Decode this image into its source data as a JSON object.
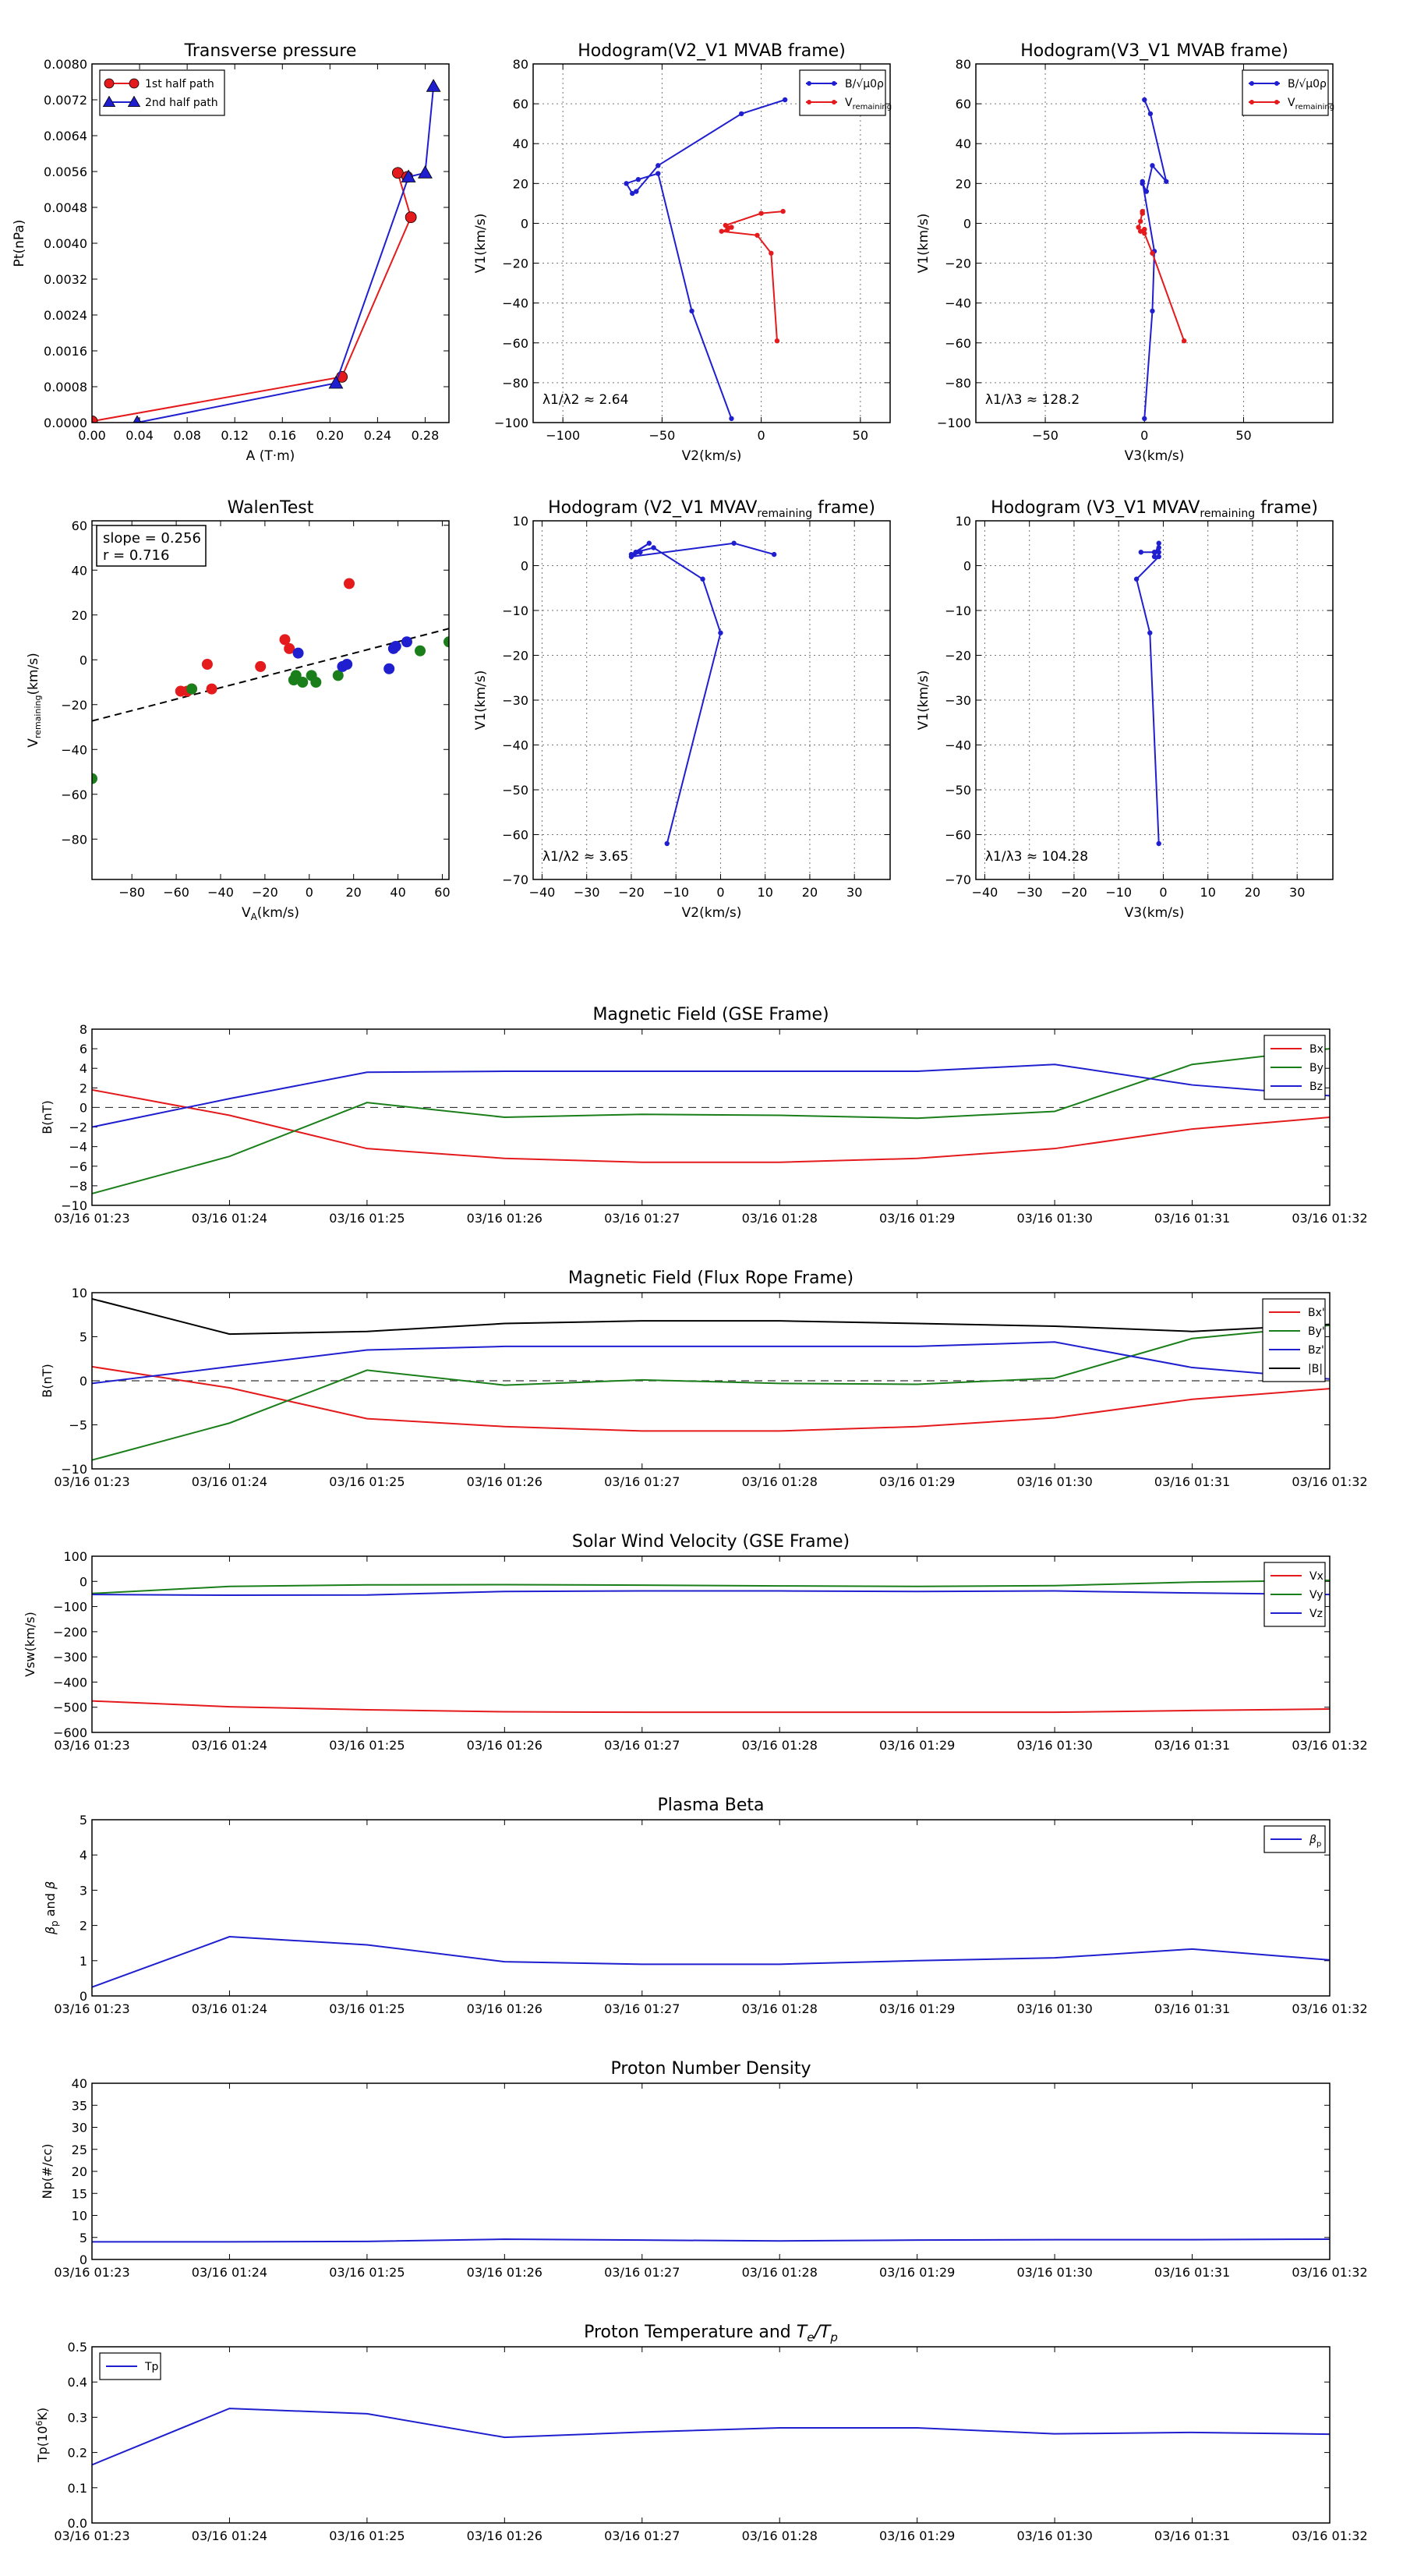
{
  "time_ticks": [
    "03/16 01:23",
    "03/16 01:24",
    "03/16 01:25",
    "03/16 01:26",
    "03/16 01:27",
    "03/16 01:28",
    "03/16 01:29",
    "03/16 01:30",
    "03/16 01:31",
    "03/16 01:32"
  ],
  "colors": {
    "red": "#e41a1c",
    "green": "#1a7f1a",
    "blue": "#1f1fd0",
    "black": "#000000"
  },
  "chart_data": [
    {
      "id": "transverse-pressure",
      "type": "line",
      "title": "Transverse pressure",
      "xlabel": "A (T·m)",
      "ylabel": "Pt(nPa)",
      "xlim": [
        0,
        0.3
      ],
      "ylim": [
        0,
        0.008
      ],
      "xticks": [
        0,
        0.04,
        0.08,
        0.12,
        0.16,
        0.2,
        0.24,
        0.28
      ],
      "xtick_labels": [
        "0.00",
        "0.04",
        "0.08",
        "0.12",
        "0.16",
        "0.20",
        "0.24",
        "0.28"
      ],
      "yticks": [
        0,
        0.0008,
        0.0016,
        0.0024,
        0.0032,
        0.004,
        0.0048,
        0.0056,
        0.0064,
        0.0072,
        0.008
      ],
      "ytick_labels": [
        "0.0000",
        "0.0008",
        "0.0016",
        "0.0024",
        "0.0032",
        "0.0040",
        "0.0048",
        "0.0056",
        "0.0064",
        "0.0072",
        "0.0080"
      ],
      "grid": false,
      "legend": "upper-left",
      "series": [
        {
          "name": "1st half path",
          "color": "red",
          "marker": "circle",
          "x": [
            0.0,
            0.21,
            0.268,
            0.257,
            0.265
          ],
          "y": [
            3e-05,
            0.00102,
            0.00458,
            0.00557,
            0.00548
          ]
        },
        {
          "name": "2nd half path",
          "color": "blue",
          "marker": "triangle",
          "x": [
            0.038,
            0.205,
            0.266,
            0.28,
            0.287
          ],
          "y": [
            0.0,
            0.00088,
            0.00548,
            0.00557,
            0.0075
          ]
        }
      ]
    },
    {
      "id": "hodogram-v2-v1-mvab",
      "type": "line",
      "title": "Hodogram(V2_V1 MVAB frame)",
      "xlabel": "V2(km/s)",
      "ylabel": "V1(km/s)",
      "xlim": [
        -115,
        65
      ],
      "ylim": [
        -100,
        80
      ],
      "xticks": [
        -100,
        -50,
        0,
        50
      ],
      "xtick_labels": [
        "−100",
        "−50",
        "0",
        "50"
      ],
      "yticks": [
        -100,
        -80,
        -60,
        -40,
        -20,
        0,
        20,
        40,
        60,
        80
      ],
      "ytick_labels": [
        "−100",
        "−80",
        "−60",
        "−40",
        "−20",
        "0",
        "20",
        "40",
        "60",
        "80"
      ],
      "grid": true,
      "legend": "upper-right",
      "annotation": "λ1/λ2 ≈ 2.64",
      "series": [
        {
          "name": "B/√μ0ρ",
          "color": "blue",
          "marker": "dot",
          "x": [
            12,
            -10,
            -52,
            -63,
            -65,
            -68,
            -62,
            -52,
            -35,
            -15
          ],
          "y": [
            62,
            55,
            29,
            16,
            15,
            20,
            22,
            25,
            -44,
            -98
          ]
        },
        {
          "name": "Vremaining",
          "color": "red",
          "marker": "dot",
          "x": [
            11,
            0,
            -18,
            -15,
            -17,
            -20,
            -2,
            5,
            8
          ],
          "y": [
            6,
            5,
            -1,
            -2,
            -3,
            -4,
            -6,
            -15,
            -59
          ]
        }
      ]
    },
    {
      "id": "hodogram-v3-v1-mvab",
      "type": "line",
      "title": "Hodogram(V3_V1 MVAB frame)",
      "xlabel": "V3(km/s)",
      "ylabel": "V1(km/s)",
      "xlim": [
        -85,
        95
      ],
      "ylim": [
        -100,
        80
      ],
      "xticks": [
        -50,
        0,
        50
      ],
      "xtick_labels": [
        "−50",
        "0",
        "50"
      ],
      "yticks": [
        -100,
        -80,
        -60,
        -40,
        -20,
        0,
        20,
        40,
        60,
        80
      ],
      "ytick_labels": [
        "−100",
        "−80",
        "−60",
        "−40",
        "−20",
        "0",
        "20",
        "40",
        "60",
        "80"
      ],
      "grid": true,
      "legend": "upper-right",
      "annotation": "λ1/λ3 ≈ 128.2",
      "series": [
        {
          "name": "B/√μ0ρ",
          "color": "blue",
          "marker": "dot",
          "x": [
            0,
            3,
            11,
            4,
            1,
            -1,
            -1,
            5,
            4,
            0
          ],
          "y": [
            62,
            55,
            21,
            29,
            16,
            20,
            21,
            -14,
            -44,
            -98
          ]
        },
        {
          "name": "Vremaining",
          "color": "red",
          "marker": "dot",
          "x": [
            -1,
            -1,
            -2,
            -3,
            -2,
            0,
            0,
            4,
            20
          ],
          "y": [
            5,
            6,
            1,
            -2,
            -4,
            -3,
            -5,
            -15,
            -59
          ]
        }
      ]
    },
    {
      "id": "walen-test",
      "type": "scatter",
      "title": "WalenTest",
      "xlabel": "V_A(km/s)",
      "ylabel": "V_remaining(km/s)",
      "xlim": [
        -98,
        63
      ],
      "ylim": [
        -98,
        62
      ],
      "xticks": [
        -80,
        -60,
        -40,
        -20,
        0,
        20,
        40,
        60
      ],
      "xtick_labels": [
        "−80",
        "−60",
        "−40",
        "−20",
        "0",
        "20",
        "40",
        "60"
      ],
      "yticks": [
        -80,
        -60,
        -40,
        -20,
        0,
        20,
        40,
        60
      ],
      "ytick_labels": [
        "−80",
        "−60",
        "−40",
        "−20",
        "0",
        "20",
        "40",
        "60"
      ],
      "grid": false,
      "annotation_lines": [
        "slope = 0.256",
        "r = 0.716"
      ],
      "fit": {
        "slope": 0.256,
        "intercept": -2.2
      },
      "series": [
        {
          "color": "red",
          "x": [
            -58,
            -55,
            -53,
            -46,
            -44,
            -22,
            -11,
            -9,
            18
          ],
          "y": [
            -14,
            -14,
            -13,
            -2,
            -13,
            -3,
            9,
            5,
            34
          ]
        },
        {
          "color": "green",
          "x": [
            -98,
            -53,
            -7,
            -6,
            -3,
            1,
            3,
            13,
            50,
            63
          ],
          "y": [
            -53,
            -13,
            -9,
            -7,
            -10,
            -7,
            -10,
            -7,
            4,
            8
          ]
        },
        {
          "color": "blue",
          "x": [
            -5,
            15,
            17,
            36,
            38,
            39,
            44
          ],
          "y": [
            3,
            -3,
            -2,
            -4,
            5,
            6,
            8
          ]
        }
      ]
    },
    {
      "id": "hodogram-v2-v1-mvav",
      "type": "line",
      "title": "Hodogram (V2_V1 MVAV_remaining frame)",
      "xlabel": "V2(km/s)",
      "ylabel": "V1(km/s)",
      "xlim": [
        -42,
        38
      ],
      "ylim": [
        -70,
        10
      ],
      "xticks": [
        -40,
        -30,
        -20,
        -10,
        0,
        10,
        20,
        30
      ],
      "xtick_labels": [
        "−40",
        "−30",
        "−20",
        "−10",
        "0",
        "10",
        "20",
        "30"
      ],
      "yticks": [
        -70,
        -60,
        -50,
        -40,
        -30,
        -20,
        -10,
        0,
        10
      ],
      "ytick_labels": [
        "−70",
        "−60",
        "−50",
        "−40",
        "−30",
        "−20",
        "−10",
        "0",
        "10"
      ],
      "grid": true,
      "annotation": "λ1/λ2 ≈ 3.65",
      "series": [
        {
          "color": "blue",
          "marker": "dot",
          "x": [
            12,
            3,
            -20,
            -18,
            -20,
            -16,
            -19,
            -15,
            -4,
            0,
            -12
          ],
          "y": [
            2.5,
            5,
            2,
            3,
            2.5,
            5,
            3,
            4,
            -3,
            -15,
            -62
          ]
        }
      ]
    },
    {
      "id": "hodogram-v3-v1-mvav",
      "type": "line",
      "title": "Hodogram (V3_V1 MVAV_remaining frame)",
      "xlabel": "V3(km/s)",
      "ylabel": "V1(km/s)",
      "xlim": [
        -42,
        38
      ],
      "ylim": [
        -70,
        10
      ],
      "xticks": [
        -40,
        -30,
        -20,
        -10,
        0,
        10,
        20,
        30
      ],
      "xtick_labels": [
        "−40",
        "−30",
        "−20",
        "−10",
        "0",
        "10",
        "20",
        "30"
      ],
      "yticks": [
        -70,
        -60,
        -50,
        -40,
        -30,
        -20,
        -10,
        0,
        10
      ],
      "ytick_labels": [
        "−70",
        "−60",
        "−50",
        "−40",
        "−30",
        "−20",
        "−10",
        "0",
        "10"
      ],
      "grid": true,
      "annotation": "λ1/λ3 ≈ 104.28",
      "series": [
        {
          "color": "blue",
          "marker": "dot",
          "x": [
            -5,
            -2,
            -1,
            -2,
            -1,
            -1,
            -1,
            -6,
            -3,
            -1
          ],
          "y": [
            3,
            3,
            4,
            2,
            5,
            3,
            2,
            -3,
            -15,
            -62
          ]
        }
      ]
    },
    {
      "id": "magnetic-field-gse",
      "type": "line",
      "title": "Magnetic Field (GSE Frame)",
      "ylabel": "B(nT)",
      "ylim": [
        -10,
        8
      ],
      "yticks": [
        -10,
        -8,
        -6,
        -4,
        -2,
        0,
        2,
        4,
        6,
        8
      ],
      "ytick_labels": [
        "−10",
        "−8",
        "−6",
        "−4",
        "−2",
        "0",
        "2",
        "4",
        "6",
        "8"
      ],
      "zero_line": true,
      "legend": "upper-right",
      "x": [
        0,
        1,
        2,
        3,
        4,
        5,
        6,
        7,
        8,
        9
      ],
      "series": [
        {
          "name": "Bx",
          "color": "red",
          "values": [
            1.8,
            -0.8,
            -4.2,
            -5.2,
            -5.6,
            -5.6,
            -5.2,
            -4.2,
            -2.2,
            -1.0
          ]
        },
        {
          "name": "By",
          "color": "green",
          "values": [
            -8.8,
            -5.0,
            0.5,
            -1.0,
            -0.7,
            -0.8,
            -1.1,
            -0.4,
            4.4,
            6.0
          ]
        },
        {
          "name": "Bz",
          "color": "blue",
          "values": [
            -2.0,
            0.9,
            3.6,
            3.7,
            3.7,
            3.7,
            3.7,
            4.4,
            2.3,
            1.2
          ]
        }
      ]
    },
    {
      "id": "magnetic-field-flux-rope",
      "type": "line",
      "title": "Magnetic Field (Flux Rope Frame)",
      "ylabel": "B(nT)",
      "ylim": [
        -10,
        10
      ],
      "yticks": [
        -10,
        -5,
        0,
        5,
        10
      ],
      "ytick_labels": [
        "−10",
        "−5",
        "0",
        "5",
        "10"
      ],
      "zero_line": true,
      "legend": "upper-right",
      "x": [
        0,
        1,
        2,
        3,
        4,
        5,
        6,
        7,
        8,
        9
      ],
      "series": [
        {
          "name": "Bx'",
          "color": "red",
          "values": [
            1.6,
            -0.8,
            -4.3,
            -5.2,
            -5.7,
            -5.7,
            -5.2,
            -4.2,
            -2.1,
            -0.9
          ]
        },
        {
          "name": "By'",
          "color": "green",
          "values": [
            -9.0,
            -4.8,
            1.2,
            -0.5,
            0.1,
            -0.3,
            -0.4,
            0.3,
            4.8,
            6.3
          ]
        },
        {
          "name": "Bz'",
          "color": "blue",
          "values": [
            -0.3,
            1.6,
            3.5,
            3.9,
            3.9,
            3.9,
            3.9,
            4.4,
            1.5,
            0.2
          ]
        },
        {
          "name": "|B|",
          "color": "black",
          "values": [
            9.3,
            5.3,
            5.6,
            6.5,
            6.8,
            6.8,
            6.5,
            6.2,
            5.6,
            6.4
          ]
        }
      ]
    },
    {
      "id": "solar-wind-velocity",
      "type": "line",
      "title": "Solar Wind Velocity (GSE Frame)",
      "ylabel": "Vsw(km/s)",
      "ylim": [
        -600,
        100
      ],
      "yticks": [
        -600,
        -500,
        -400,
        -300,
        -200,
        -100,
        0,
        100
      ],
      "ytick_labels": [
        "−600",
        "−500",
        "−400",
        "−300",
        "−200",
        "−100",
        "0",
        "100"
      ],
      "legend": "upper-right",
      "x": [
        0,
        1,
        2,
        3,
        4,
        5,
        6,
        7,
        8,
        9
      ],
      "series": [
        {
          "name": "Vx",
          "color": "red",
          "values": [
            -475,
            -498,
            -510,
            -518,
            -520,
            -520,
            -520,
            -520,
            -513,
            -507
          ]
        },
        {
          "name": "Vy",
          "color": "green",
          "values": [
            -48,
            -20,
            -14,
            -13,
            -15,
            -18,
            -20,
            -17,
            -3,
            4
          ]
        },
        {
          "name": "Vz",
          "color": "blue",
          "values": [
            -52,
            -55,
            -54,
            -40,
            -38,
            -38,
            -40,
            -38,
            -46,
            -52
          ]
        }
      ]
    },
    {
      "id": "plasma-beta",
      "type": "line",
      "title": "Plasma Beta",
      "ylabel": "βp and β",
      "ylim": [
        0,
        5
      ],
      "yticks": [
        0,
        1,
        2,
        3,
        4,
        5
      ],
      "ytick_labels": [
        "0",
        "1",
        "2",
        "3",
        "4",
        "5"
      ],
      "legend": "upper-right",
      "x": [
        0,
        1,
        2,
        3,
        4,
        5,
        6,
        7,
        8,
        9
      ],
      "series": [
        {
          "name": "βp",
          "color": "blue",
          "values": [
            0.25,
            1.68,
            1.45,
            0.97,
            0.9,
            0.9,
            1.0,
            1.08,
            1.33,
            1.02
          ]
        }
      ]
    },
    {
      "id": "proton-number-density",
      "type": "line",
      "title": "Proton Number Density",
      "ylabel": "Np(#/cc)",
      "ylim": [
        0,
        40
      ],
      "yticks": [
        0,
        5,
        10,
        15,
        20,
        25,
        30,
        35,
        40
      ],
      "ytick_labels": [
        "0",
        "5",
        "10",
        "15",
        "20",
        "25",
        "30",
        "35",
        "40"
      ],
      "x": [
        0,
        1,
        2,
        3,
        4,
        5,
        6,
        7,
        8,
        9
      ],
      "series": [
        {
          "color": "blue",
          "values": [
            4.0,
            4.0,
            4.1,
            4.6,
            4.4,
            4.2,
            4.4,
            4.5,
            4.5,
            4.6
          ]
        }
      ]
    },
    {
      "id": "proton-temperature",
      "type": "line",
      "title": "Proton Temperature and Te/Tp",
      "ylabel": "Tp(10⁶K)",
      "ylim": [
        0,
        0.5
      ],
      "yticks": [
        0,
        0.1,
        0.2,
        0.3,
        0.4,
        0.5
      ],
      "ytick_labels": [
        "0.0",
        "0.1",
        "0.2",
        "0.3",
        "0.4",
        "0.5"
      ],
      "legend": "upper-left",
      "x": [
        0,
        1,
        2,
        3,
        4,
        5,
        6,
        7,
        8,
        9
      ],
      "series": [
        {
          "name": "Tp",
          "color": "blue",
          "values": [
            0.165,
            0.325,
            0.31,
            0.243,
            0.258,
            0.27,
            0.27,
            0.253,
            0.257,
            0.252
          ]
        }
      ]
    }
  ]
}
